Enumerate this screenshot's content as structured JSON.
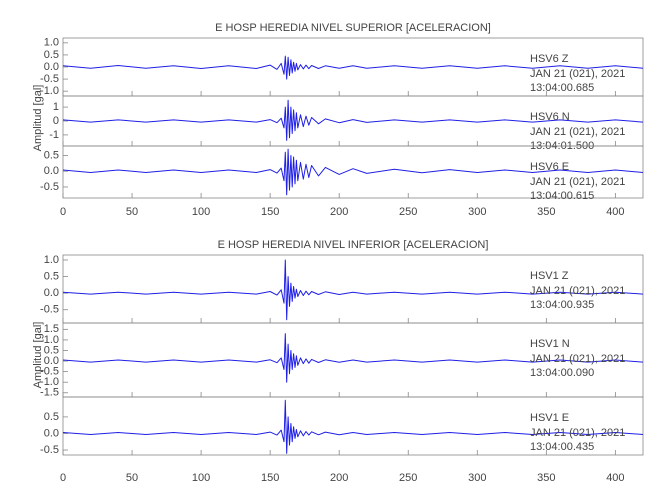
{
  "chart_data": [
    {
      "type": "line",
      "title": "E HOSP HEREDIA NIVEL SUPERIOR [ACELERACION]",
      "y_label": "Amplitud [gal]",
      "color": "#1f1fe6",
      "xlim": [
        0,
        420
      ],
      "xticks": [
        0,
        50,
        100,
        150,
        200,
        250,
        300,
        350,
        400
      ],
      "x": [
        0,
        20,
        40,
        60,
        80,
        100,
        120,
        140,
        150,
        155,
        158,
        160,
        161,
        162,
        163,
        164,
        165,
        166,
        167,
        168,
        169,
        170,
        172,
        174,
        176,
        178,
        180,
        185,
        190,
        200,
        210,
        220,
        240,
        260,
        280,
        300,
        320,
        340,
        360,
        380,
        400,
        420
      ],
      "series": [
        {
          "name": "HSV6  Z",
          "date": "JAN 21 (021), 2021",
          "time": "13:04:00.685",
          "ylim": [
            -1.2,
            1.2
          ],
          "yticks": [
            {
              "value": 1.0,
              "label": "1.0"
            },
            0.5,
            {
              "value": 0,
              "label": "0.0"
            },
            -0.5,
            {
              "value": -1.0,
              "label": "-1.0"
            }
          ],
          "values": [
            0.05,
            -0.05,
            0.06,
            -0.05,
            0.05,
            -0.06,
            0.05,
            -0.06,
            0.08,
            -0.1,
            0.15,
            -0.3,
            0.45,
            -0.5,
            0.4,
            -0.35,
            0.3,
            -0.25,
            0.2,
            -0.18,
            0.15,
            -0.12,
            0.1,
            -0.08,
            0.08,
            -0.07,
            0.06,
            -0.06,
            0.05,
            -0.05,
            0.05,
            -0.05,
            0.05,
            -0.05,
            0.05,
            -0.05,
            0.05,
            -0.05,
            0.05,
            -0.05,
            0.05,
            -0.05
          ]
        },
        {
          "name": "HSV6  N",
          "date": "JAN 21 (021), 2021",
          "time": "13:04:01.500",
          "ylim": [
            -1.8,
            1.8
          ],
          "yticks": [
            1,
            0,
            -1
          ],
          "values": [
            0.08,
            -0.08,
            0.08,
            -0.08,
            0.08,
            -0.08,
            0.08,
            -0.08,
            0.1,
            -0.12,
            0.2,
            -0.5,
            1.0,
            -1.4,
            1.5,
            -1.2,
            1.0,
            -0.9,
            0.8,
            -0.7,
            0.6,
            -0.5,
            0.45,
            -0.4,
            0.35,
            -0.3,
            0.25,
            -0.2,
            0.15,
            -0.12,
            0.1,
            -0.1,
            0.08,
            -0.08,
            0.08,
            -0.08,
            0.08,
            -0.08,
            0.08,
            -0.08,
            0.08,
            -0.08
          ]
        },
        {
          "name": "HSV6  E",
          "date": "JAN 21 (021), 2021",
          "time": "13:04:00.615",
          "ylim": [
            -0.85,
            0.8
          ],
          "yticks": [
            0.5,
            {
              "value": 0,
              "label": "0.0"
            },
            -0.5
          ],
          "values": [
            0.04,
            -0.04,
            0.04,
            -0.04,
            0.04,
            -0.04,
            0.04,
            -0.04,
            0.05,
            -0.06,
            0.1,
            -0.3,
            0.6,
            -0.75,
            0.7,
            -0.6,
            0.5,
            -0.5,
            0.45,
            -0.4,
            0.35,
            -0.3,
            0.28,
            -0.25,
            0.22,
            -0.2,
            0.18,
            -0.15,
            0.12,
            -0.1,
            0.08,
            -0.07,
            0.06,
            -0.05,
            0.05,
            -0.04,
            0.04,
            -0.04,
            0.04,
            -0.04,
            0.04,
            -0.04
          ]
        }
      ]
    },
    {
      "type": "line",
      "title": "E HOSP HEREDIA NIVEL INFERIOR [ACELERACION]",
      "y_label": "Amplitud [gal]",
      "color": "#1f1fe6",
      "xlim": [
        0,
        420
      ],
      "xticks": [
        0,
        50,
        100,
        150,
        200,
        250,
        300,
        350,
        400
      ],
      "x": [
        0,
        20,
        40,
        60,
        80,
        100,
        120,
        140,
        150,
        155,
        158,
        160,
        161,
        162,
        163,
        164,
        165,
        166,
        167,
        168,
        169,
        170,
        172,
        174,
        176,
        178,
        180,
        185,
        190,
        200,
        210,
        220,
        240,
        260,
        280,
        300,
        320,
        340,
        360,
        380,
        400,
        420
      ],
      "series": [
        {
          "name": "HSV1  Z",
          "date": "JAN 21 (021), 2021",
          "time": "13:04:00.935",
          "ylim": [
            -0.9,
            1.15
          ],
          "yticks": [
            {
              "value": 1.0,
              "label": "1.0"
            },
            0.5,
            {
              "value": 0,
              "label": "0.0"
            },
            -0.5
          ],
          "values": [
            0.03,
            -0.03,
            0.03,
            -0.03,
            0.03,
            -0.03,
            0.03,
            -0.03,
            0.05,
            -0.06,
            0.1,
            -0.3,
            1.0,
            -0.8,
            0.5,
            -0.4,
            0.3,
            -0.25,
            0.2,
            -0.15,
            0.12,
            -0.1,
            0.08,
            -0.07,
            0.06,
            -0.05,
            0.05,
            -0.04,
            0.04,
            -0.04,
            0.03,
            -0.03,
            0.03,
            -0.03,
            0.03,
            -0.03,
            0.03,
            -0.03,
            0.03,
            -0.03,
            0.03,
            -0.03
          ]
        },
        {
          "name": "HSV1  N",
          "date": "JAN 21 (021), 2021",
          "time": "13:04:00.090",
          "ylim": [
            -1.7,
            1.8
          ],
          "yticks": [
            1.5,
            {
              "value": 1.0,
              "label": "1.0"
            },
            0.5,
            {
              "value": 0,
              "label": "0.0"
            },
            -0.5,
            {
              "value": -1.0,
              "label": "-1.0"
            },
            -1.5
          ],
          "values": [
            0.05,
            -0.05,
            0.05,
            -0.05,
            0.05,
            -0.05,
            0.05,
            -0.05,
            0.06,
            -0.08,
            0.15,
            -0.4,
            1.3,
            -1.0,
            0.8,
            -0.6,
            0.5,
            -0.4,
            0.35,
            -0.3,
            0.25,
            -0.2,
            0.15,
            -0.12,
            0.1,
            -0.1,
            0.08,
            -0.07,
            0.06,
            -0.06,
            0.05,
            -0.05,
            0.05,
            -0.05,
            0.05,
            -0.05,
            0.05,
            -0.05,
            0.05,
            -0.05,
            0.05,
            -0.05
          ]
        },
        {
          "name": "HSV1  E",
          "date": "JAN 21 (021), 2021",
          "time": "13:04:00.435",
          "ylim": [
            -0.65,
            1.1
          ],
          "yticks": [
            0.5,
            {
              "value": 0,
              "label": "0.0"
            },
            -0.5
          ],
          "values": [
            0.03,
            -0.03,
            0.03,
            -0.03,
            0.03,
            -0.03,
            0.03,
            -0.03,
            0.04,
            -0.05,
            0.1,
            -0.25,
            1.0,
            -0.6,
            0.5,
            -0.35,
            0.3,
            -0.25,
            0.2,
            -0.15,
            0.12,
            -0.1,
            0.08,
            -0.07,
            0.06,
            -0.05,
            0.05,
            -0.04,
            0.04,
            -0.04,
            0.03,
            -0.03,
            0.03,
            -0.03,
            0.03,
            -0.03,
            0.03,
            -0.03,
            0.03,
            -0.03,
            0.03,
            -0.03
          ]
        }
      ]
    }
  ]
}
